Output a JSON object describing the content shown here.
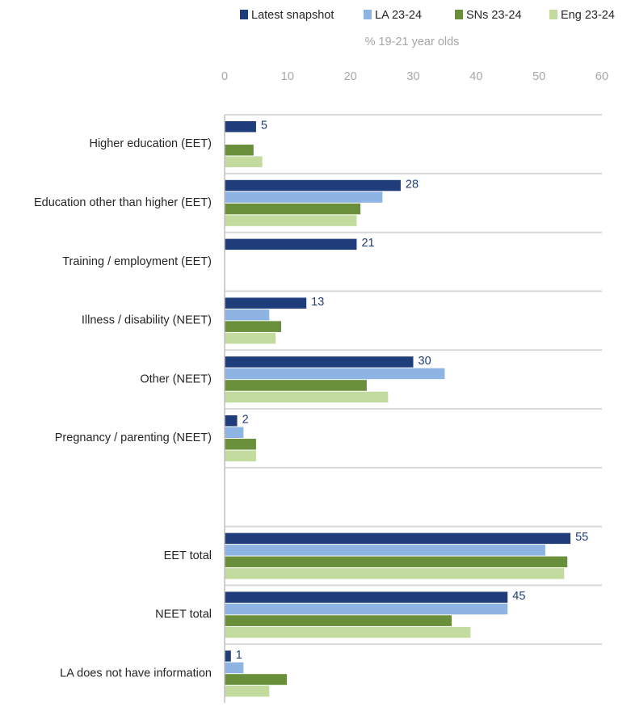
{
  "chart_data": {
    "type": "hbar",
    "axis_title": "% 19-21 year olds",
    "categories": [
      "Higher education (EET)",
      "Education other than higher (EET)",
      "Training / employment (EET)",
      "Illness / disability (NEET)",
      "Other (NEET)",
      "Pregnancy / parenting (NEET)",
      null,
      "EET total",
      "NEET total",
      "LA does not have information"
    ],
    "series": [
      {
        "name": "Latest snapshot",
        "color": "#1f3d7a",
        "show_labels": true,
        "values": [
          5,
          28,
          21,
          13,
          30,
          2,
          null,
          55,
          45,
          1
        ]
      },
      {
        "name": "LA 23-24",
        "color": "#8db4e2",
        "values": [
          null,
          25.1,
          null,
          7.1,
          35.0,
          3.0,
          null,
          51.0,
          45.0,
          3.0
        ]
      },
      {
        "name": "SNs 23-24",
        "color": "#6a8f3a",
        "values": [
          4.6,
          21.6,
          null,
          9.0,
          22.6,
          5.0,
          null,
          54.5,
          36.1,
          9.9
        ]
      },
      {
        "name": "Eng 23-24",
        "color": "#c4dba0",
        "values": [
          6.0,
          21.0,
          null,
          8.1,
          26.0,
          5.0,
          null,
          54.0,
          39.1,
          7.1
        ]
      }
    ],
    "xlim": [
      0,
      60
    ],
    "xticks": [
      0,
      10,
      20,
      30,
      40,
      50,
      60
    ],
    "grid": false,
    "legend": "top"
  }
}
